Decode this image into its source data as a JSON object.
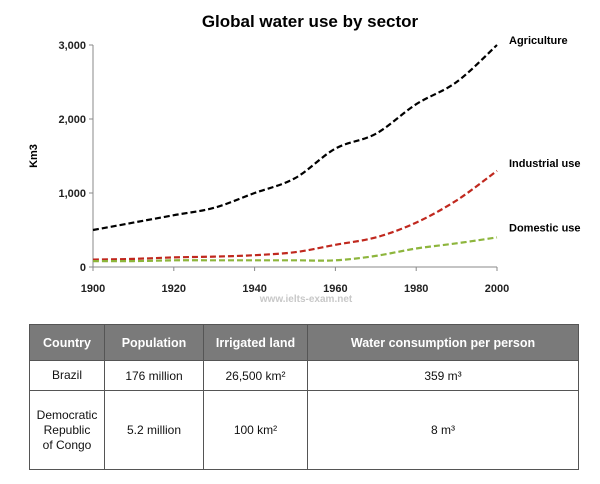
{
  "chart_data": {
    "type": "line",
    "title": "Global water use by sector",
    "xlabel": "",
    "ylabel": "Km3",
    "x": [
      1900,
      1910,
      1920,
      1930,
      1940,
      1950,
      1960,
      1970,
      1980,
      1990,
      2000
    ],
    "xticks": [
      1900,
      1920,
      1940,
      1960,
      1980,
      2000
    ],
    "xtick_labels": [
      "1900",
      "1920",
      "1940",
      "1960",
      "1980",
      "2000"
    ],
    "xlim": [
      1900,
      2000
    ],
    "yticks": [
      0,
      1000,
      2000,
      3000
    ],
    "ytick_labels": [
      "0",
      "1,000",
      "2,000",
      "3,000"
    ],
    "ylim": [
      0,
      3000
    ],
    "grid": false,
    "series": [
      {
        "name": "Agriculture",
        "color": "#000000",
        "values": [
          500,
          600,
          700,
          800,
          1000,
          1200,
          1600,
          1800,
          2200,
          2500,
          3000
        ]
      },
      {
        "name": "Industrial use",
        "color": "#c0281e",
        "values": [
          100,
          110,
          130,
          140,
          160,
          200,
          300,
          400,
          600,
          900,
          1300
        ]
      },
      {
        "name": "Domestic use",
        "color": "#8db53c",
        "values": [
          80,
          80,
          90,
          90,
          90,
          90,
          90,
          150,
          250,
          320,
          400
        ]
      }
    ],
    "watermark": "www.ielts-exam.net"
  },
  "table": {
    "headers": [
      "Country",
      "Population",
      "Irrigated land",
      "Water consumption per person"
    ],
    "rows": [
      {
        "country": [
          "Brazil"
        ],
        "population": "176 million",
        "irrigated": "26,500 km²",
        "consumption": "359 m³"
      },
      {
        "country": [
          "Democratic",
          "Republic",
          "of Congo"
        ],
        "population": "5.2 million",
        "irrigated": "100 km²",
        "consumption": "8 m³"
      }
    ]
  }
}
